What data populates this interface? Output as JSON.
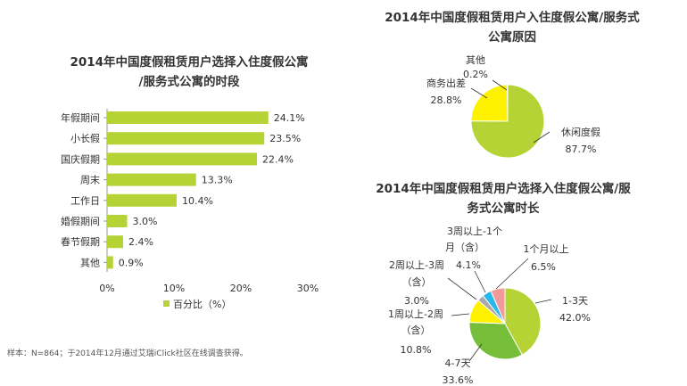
{
  "chart_data": [
    {
      "type": "bar",
      "title": [
        "2014年中国度假租赁用户选择入住度假公寓",
        "/服务式公寓的时段"
      ],
      "categories": [
        "年假期间",
        "小长假",
        "国庆假期",
        "周末",
        "工作日",
        "婚假期间",
        "春节假期",
        "其他"
      ],
      "values": [
        24.1,
        23.5,
        22.4,
        13.3,
        10.4,
        3.0,
        2.4,
        0.9
      ],
      "value_labels": [
        "24.1%",
        "23.5%",
        "22.4%",
        "13.3%",
        "10.4%",
        "3.0%",
        "2.4%",
        "0.9%"
      ],
      "xlim": [
        0,
        30
      ],
      "xticks": [
        0,
        10,
        20,
        30
      ],
      "xtick_labels": [
        "0%",
        "10%",
        "20%",
        "30%"
      ],
      "legend": "百分比（%）",
      "color": "#b5d334"
    },
    {
      "type": "pie",
      "title": [
        "2014年中国度假租赁用户入住度假公寓/服务式",
        "公寓原因"
      ],
      "slices": [
        {
          "label": "休闲度假",
          "value": 87.7,
          "value_label": "87.7%",
          "color": "#b5d334"
        },
        {
          "label": "商务出差",
          "value": 28.8,
          "value_label": "28.8%",
          "color": "#fff200"
        },
        {
          "label": "其他",
          "value": 0.2,
          "value_label": "0.2%",
          "color": "#2e9fd8"
        }
      ]
    },
    {
      "type": "pie",
      "title": [
        "2014年中国度假租赁用户选择入住度假公寓/服",
        "务式公寓时长"
      ],
      "slices": [
        {
          "label": "1-3天",
          "value": 42.0,
          "value_label": "42.0%",
          "color": "#b5d334"
        },
        {
          "label": "4-7天",
          "value": 33.6,
          "value_label": "33.6%",
          "color": "#76bd3a"
        },
        {
          "label": "1周以上-2周（含）",
          "label_lines": [
            "1周以上-2周",
            "（含）"
          ],
          "value": 10.8,
          "value_label": "10.8%",
          "color": "#fff200"
        },
        {
          "label": "2周以上-3周（含）",
          "label_lines": [
            "2周以上-3周",
            "（含）"
          ],
          "value": 3.0,
          "value_label": "3.0%",
          "color": "#a7a9ac"
        },
        {
          "label": "3周以上-1个月（含）",
          "label_lines": [
            "3周以上-1个",
            "月（含）"
          ],
          "value": 4.1,
          "value_label": "4.1%",
          "color": "#27b7e8"
        },
        {
          "label": "1个月以上",
          "value": 6.5,
          "value_label": "6.5%",
          "color": "#f09a9a"
        }
      ]
    }
  ],
  "footnote": "样本：N=864；于2014年12月通过艾瑞iClick社区在线调查获得。"
}
